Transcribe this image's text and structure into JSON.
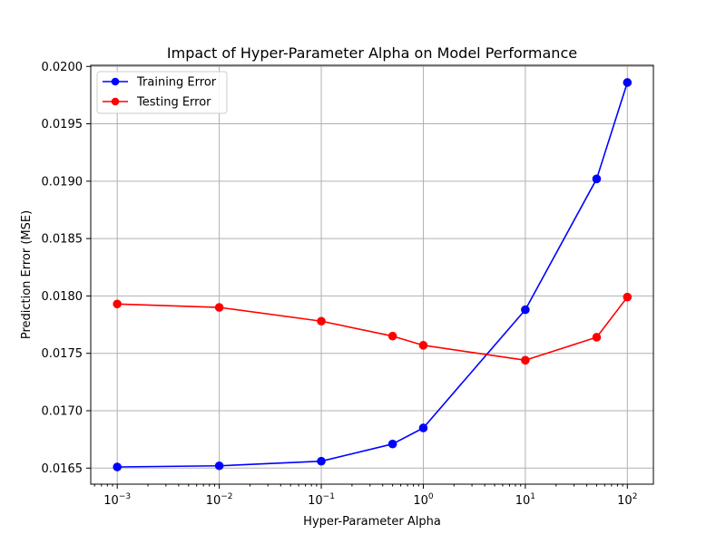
{
  "chart_data": {
    "type": "line",
    "title": "Impact of Hyper-Parameter Alpha on Model Performance",
    "xlabel": "Hyper-Parameter Alpha",
    "ylabel": "Prediction Error (MSE)",
    "x_scale": "log",
    "x": [
      0.001,
      0.01,
      0.1,
      0.5,
      1,
      10,
      50,
      100
    ],
    "xlim": [
      0.00055,
      180
    ],
    "ylim": [
      0.01636,
      0.02001
    ],
    "x_ticks": [
      {
        "value": 0.001,
        "base": "10",
        "exp": "−3"
      },
      {
        "value": 0.01,
        "base": "10",
        "exp": "−2"
      },
      {
        "value": 0.1,
        "base": "10",
        "exp": "−1"
      },
      {
        "value": 1,
        "base": "10",
        "exp": "0"
      },
      {
        "value": 10,
        "base": "10",
        "exp": "1"
      },
      {
        "value": 100,
        "base": "10",
        "exp": "2"
      }
    ],
    "y_ticks": [
      "0.0165",
      "0.0170",
      "0.0175",
      "0.0180",
      "0.0185",
      "0.0190",
      "0.0195",
      "0.0200"
    ],
    "grid": true,
    "legend_position": "upper-left",
    "series": [
      {
        "name": "Training Error",
        "color": "#0000ff",
        "marker": "circle",
        "values": [
          0.01651,
          0.01652,
          0.01656,
          0.01671,
          0.01685,
          0.01788,
          0.01902,
          0.01986
        ]
      },
      {
        "name": "Testing Error",
        "color": "#ff0000",
        "marker": "circle",
        "values": [
          0.01793,
          0.0179,
          0.01778,
          0.01765,
          0.01757,
          0.01744,
          0.01764,
          0.01799
        ]
      }
    ]
  }
}
